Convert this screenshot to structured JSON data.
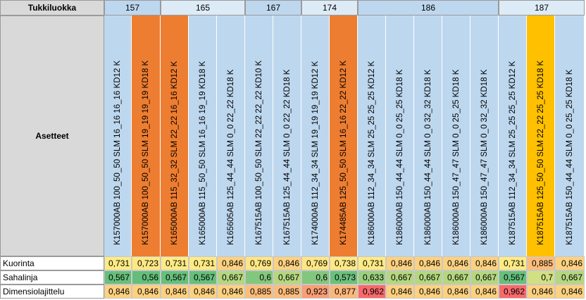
{
  "header_label": "Tukkiluokka",
  "settings_label": "Asetteet",
  "groups": [
    {
      "label": "157",
      "cols": 2
    },
    {
      "label": "165",
      "cols": 3
    },
    {
      "label": "167",
      "cols": 2
    },
    {
      "label": "174",
      "cols": 2
    },
    {
      "label": "186",
      "cols": 5
    },
    {
      "label": "187",
      "cols": 3
    }
  ],
  "columns": [
    {
      "label": "K157000AB 100_50_50 SLM 16_16 16_16 KD12 K",
      "highlight": null
    },
    {
      "label": "K157000AB 100_50_50 SLM 19_19 19_19 KD18 K",
      "highlight": "orange"
    },
    {
      "label": "K165000AB 115_32_32 SLM 22_22 16_16 KD12 K",
      "highlight": "orange"
    },
    {
      "label": "K165000AB 115_50_50 SLM 16_16 19_19 KD18 K",
      "highlight": null
    },
    {
      "label": "K165605AB 125_44_44 SLM 0_0 22_22 KD18 K",
      "highlight": null
    },
    {
      "label": "K167515AB 100_50_50 SLM 22_22 22_22 KD10 K",
      "highlight": null
    },
    {
      "label": "K167515AB 125_44_44 SLM 0_0 22_22 KD18 K",
      "highlight": null
    },
    {
      "label": "K174000AB 112_34_34 SLM 19_19 19_19 KD12 K",
      "highlight": null
    },
    {
      "label": "K174485AB 125_50_50 SLM 16_16 22_22 KD12 K",
      "highlight": "orange"
    },
    {
      "label": "K186000AB 112_34_34 SLM 25_25 25_25 KD12 K",
      "highlight": null
    },
    {
      "label": "K186000AB 150_44_44 SLM 0_0 25_25 KD18 K",
      "highlight": null
    },
    {
      "label": "K186000AB 150_44_44 SLM 0_0 32_32 KD18 K",
      "highlight": null
    },
    {
      "label": "K186000AB 150_47_47 SLM 0_0 25_25 KD18 K",
      "highlight": null
    },
    {
      "label": "K186000AB 150_47_47 SLM 0_0 32_32 KD18 K",
      "highlight": null
    },
    {
      "label": "K187515AB 112_34_34 SLM 25_25 25_25 KD12 K",
      "highlight": null
    },
    {
      "label": "K187515AB 125_50_50 SLM 22_22 25_25 KD18 K",
      "highlight": "gold"
    },
    {
      "label": "K187515AB 150_44_44 SLM 0_0 25_25 KD18 K",
      "highlight": null
    }
  ],
  "rows": [
    {
      "label": "Kuorinta",
      "values": [
        "0,731",
        "0,723",
        "0,731",
        "0,731",
        "0,846",
        "0,769",
        "0,846",
        "0,769",
        "0,738",
        "0,731",
        "0,846",
        "0,846",
        "0,846",
        "0,846",
        "0,731",
        "0,885",
        "0,846"
      ],
      "colors": [
        "#ffeb84",
        "#ffe884",
        "#ffeb84",
        "#ffeb84",
        "#fdd17f",
        "#ffe683",
        "#fdd17f",
        "#ffe683",
        "#ffe984",
        "#ffeb84",
        "#fdd17f",
        "#fdd17f",
        "#fdd17f",
        "#fdd17f",
        "#ffeb84",
        "#fcbd7b",
        "#fdd17f"
      ]
    },
    {
      "label": "Sahalinja",
      "values": [
        "0,567",
        "0,56",
        "0,567",
        "0,567",
        "0,667",
        "0,6",
        "0,667",
        "0,6",
        "0,573",
        "0,633",
        "0,667",
        "0,667",
        "0,667",
        "0,667",
        "0,567",
        "0,7",
        "0,667"
      ],
      "colors": [
        "#66bf7c",
        "#63be7b",
        "#66bf7c",
        "#66bf7c",
        "#b4d77f",
        "#82c77d",
        "#b4d77f",
        "#82c77d",
        "#6ac07c",
        "#9bd07e",
        "#b4d77f",
        "#b4d77f",
        "#b4d77f",
        "#b4d77f",
        "#66bf7c",
        "#d0e083",
        "#b4d77f"
      ]
    },
    {
      "label": "Dimensiolajittelu",
      "values": [
        "0,846",
        "0,846",
        "0,846",
        "0,846",
        "0,846",
        "0,885",
        "0,885",
        "0,923",
        "0,877",
        "0,962",
        "0,846",
        "0,846",
        "0,846",
        "0,846",
        "0,962",
        "0,846",
        "0,846"
      ],
      "colors": [
        "#fdd17f",
        "#fdd17f",
        "#fdd17f",
        "#fdd17f",
        "#fdd17f",
        "#fcbd7b",
        "#fcbd7b",
        "#fa9e75",
        "#fcb77a",
        "#f8696b",
        "#fdd17f",
        "#fdd17f",
        "#fdd17f",
        "#fdd17f",
        "#f8696b",
        "#fdd17f",
        "#fdd17f"
      ]
    }
  ],
  "colors": {
    "label_gray": "#d9d9d9",
    "group_blue": "#bdd7ee",
    "group_white": "#ddebf7",
    "col_blue": "#bdd7ee",
    "orange": "#ed7d31",
    "gold": "#ffc000"
  }
}
